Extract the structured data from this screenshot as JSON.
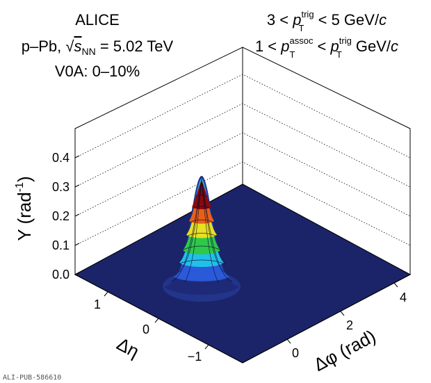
{
  "header": {
    "experiment": "ALICE",
    "system_prefix": "p–Pb, ",
    "sqrt_symbol": "√",
    "snn": "s",
    "snn_sub": "NN",
    "energy": " = 5.02 TeV",
    "centrality": "V0A: 0–10%",
    "trig_lo": "3 < ",
    "trig_p": "p",
    "trig_sup": "trig",
    "trig_sub": "T",
    "trig_hi": " < 5 GeV/",
    "trig_c": "c",
    "assoc_lo": "1 < ",
    "assoc_p": "p",
    "assoc_sup": "assoc",
    "assoc_sub": "T",
    "assoc_mid": " < ",
    "assoc_p2": "p",
    "assoc_sup2": "trig",
    "assoc_sub2": "T",
    "assoc_hi": " GeV/",
    "assoc_c": "c"
  },
  "footer": {
    "pub_id": "ALI-PUB-586610"
  },
  "chart_data": {
    "type": "surface3d",
    "zlabel": "Y (rad",
    "zlabel_sup": "-1",
    "zlabel_close": ")",
    "xlabel": "Δφ (rad)",
    "ylabel": "Δη",
    "z_ticks": [
      "0.0",
      "0.1",
      "0.2",
      "0.3",
      "0.4"
    ],
    "z_range": [
      0,
      0.4
    ],
    "dphi_ticks": [
      "0",
      "2",
      "4"
    ],
    "deta_ticks": [
      "1",
      "0",
      "−1"
    ],
    "dphi_range": [
      -1.5708,
      4.7124
    ],
    "deta_range": [
      -1.6,
      1.6
    ],
    "peak": {
      "dphi": 0,
      "deta": 0,
      "yield": 0.33
    },
    "colors": {
      "floor": "#1a2a6c",
      "mesh": "#0a0a30",
      "scale": [
        "#1e2a78",
        "#2a5ad8",
        "#22c0e8",
        "#2ec84a",
        "#e8e020",
        "#e86018",
        "#8a0a0a"
      ]
    }
  }
}
